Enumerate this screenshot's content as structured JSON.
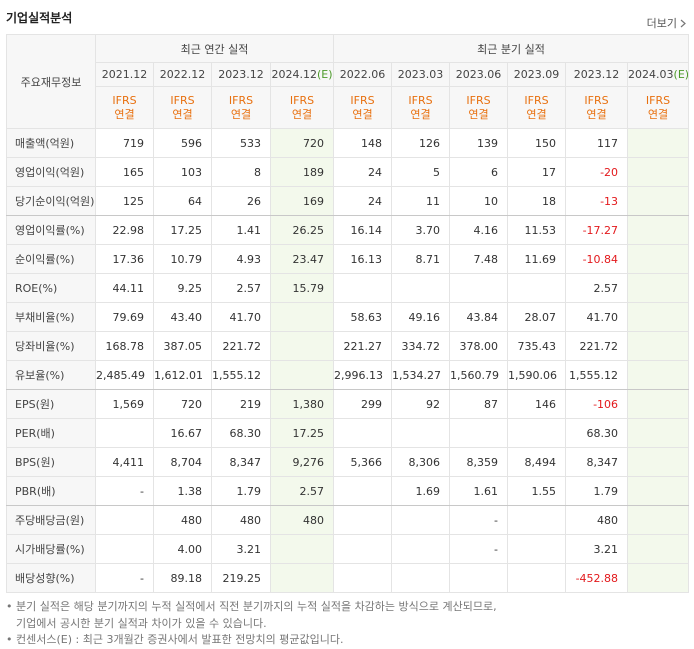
{
  "header": {
    "title": "기업실적분석",
    "more": "더보기"
  },
  "table": {
    "corner": "주요재무정보",
    "groups": [
      {
        "label": "최근 연간 실적",
        "span": 4
      },
      {
        "label": "최근 분기 실적",
        "span": 6
      }
    ],
    "columns": [
      {
        "period": "2021.12",
        "standard": "IFRS",
        "scope": "연결"
      },
      {
        "period": "2022.12",
        "standard": "IFRS",
        "scope": "연결"
      },
      {
        "period": "2023.12",
        "standard": "IFRS",
        "scope": "연결"
      },
      {
        "period": "2024.12",
        "estimate": "(E)",
        "standard": "IFRS",
        "scope": "연결"
      },
      {
        "period": "2022.06",
        "standard": "IFRS",
        "scope": "연결"
      },
      {
        "period": "2023.03",
        "standard": "IFRS",
        "scope": "연결"
      },
      {
        "period": "2023.06",
        "standard": "IFRS",
        "scope": "연결"
      },
      {
        "period": "2023.09",
        "standard": "IFRS",
        "scope": "연결"
      },
      {
        "period": "2023.12",
        "standard": "IFRS",
        "scope": "연결"
      },
      {
        "period": "2024.03",
        "estimate": "(E)",
        "standard": "IFRS",
        "scope": "연결"
      }
    ],
    "rows": [
      {
        "label": "매출액(억원)",
        "cells": [
          "719",
          "596",
          "533",
          "720",
          "148",
          "126",
          "139",
          "150",
          "117",
          null
        ]
      },
      {
        "label": "영업이익(억원)",
        "cells": [
          "165",
          "103",
          "8",
          "189",
          "24",
          "5",
          "6",
          "17",
          "-20",
          null
        ]
      },
      {
        "label": "당기순이익(억원)",
        "cells": [
          "125",
          "64",
          "26",
          "169",
          "24",
          "11",
          "10",
          "18",
          "-13",
          null
        ],
        "group_end": true
      },
      {
        "label": "영업이익률(%)",
        "cells": [
          "22.98",
          "17.25",
          "1.41",
          "26.25",
          "16.14",
          "3.70",
          "4.16",
          "11.53",
          "-17.27",
          null
        ]
      },
      {
        "label": "순이익률(%)",
        "cells": [
          "17.36",
          "10.79",
          "4.93",
          "23.47",
          "16.13",
          "8.71",
          "7.48",
          "11.69",
          "-10.84",
          null
        ]
      },
      {
        "label": "ROE(%)",
        "cells": [
          "44.11",
          "9.25",
          "2.57",
          "15.79",
          null,
          null,
          null,
          null,
          "2.57",
          null
        ]
      },
      {
        "label": "부채비율(%)",
        "cells": [
          "79.69",
          "43.40",
          "41.70",
          null,
          "58.63",
          "49.16",
          "43.84",
          "28.07",
          "41.70",
          null
        ]
      },
      {
        "label": "당좌비율(%)",
        "cells": [
          "168.78",
          "387.05",
          "221.72",
          null,
          "221.27",
          "334.72",
          "378.00",
          "735.43",
          "221.72",
          null
        ]
      },
      {
        "label": "유보율(%)",
        "cells": [
          "2,485.49",
          "1,612.01",
          "1,555.12",
          null,
          "2,996.13",
          "1,534.27",
          "1,560.79",
          "1,590.06",
          "1,555.12",
          null
        ],
        "group_end": true
      },
      {
        "label": "EPS(원)",
        "cells": [
          "1,569",
          "720",
          "219",
          "1,380",
          "299",
          "92",
          "87",
          "146",
          "-106",
          null
        ]
      },
      {
        "label": "PER(배)",
        "cells": [
          null,
          "16.67",
          "68.30",
          "17.25",
          null,
          null,
          null,
          null,
          "68.30",
          null
        ]
      },
      {
        "label": "BPS(원)",
        "cells": [
          "4,411",
          "8,704",
          "8,347",
          "9,276",
          "5,366",
          "8,306",
          "8,359",
          "8,494",
          "8,347",
          null
        ]
      },
      {
        "label": "PBR(배)",
        "cells": [
          "-",
          "1.38",
          "1.79",
          "2.57",
          null,
          "1.69",
          "1.61",
          "1.55",
          "1.79",
          null
        ],
        "group_end": true
      },
      {
        "label": "주당배당금(원)",
        "cells": [
          null,
          "480",
          "480",
          "480",
          null,
          null,
          "-",
          null,
          "480",
          null
        ]
      },
      {
        "label": "시가배당률(%)",
        "cells": [
          null,
          "4.00",
          "3.21",
          null,
          null,
          null,
          "-",
          null,
          "3.21",
          null
        ]
      },
      {
        "label": "배당성향(%)",
        "cells": [
          "-",
          "89.18",
          "219.25",
          null,
          null,
          null,
          null,
          null,
          "-452.88",
          null
        ]
      }
    ]
  },
  "notes": [
    {
      "lines": [
        "분기 실적은 해당 분기까지의 누적 실적에서 직전 분기까지의 누적 실적을 차감하는 방식으로 계산되므로,",
        "기업에서 공시한 분기 실적과 차이가 있을 수 있습니다."
      ]
    },
    {
      "lines": [
        "컨센서스(E) : 최근 3개월간 증권사에서 발표한 전망치의 평균값입니다."
      ]
    }
  ]
}
